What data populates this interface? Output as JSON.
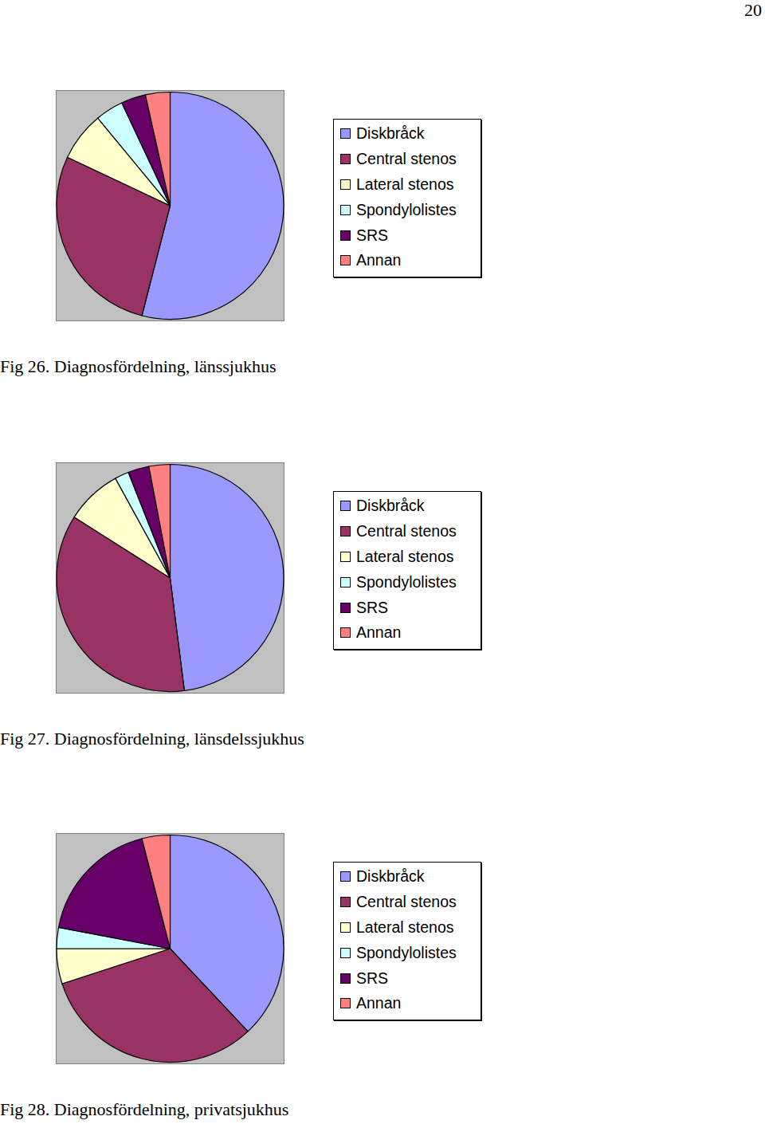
{
  "page_number": 20,
  "chart_data": [
    {
      "type": "pie",
      "title": "Fig 26. Diagnosfördelning, länssjukhus",
      "categories": [
        "Diskbråck",
        "Central stenos",
        "Lateral stenos",
        "Spondylolistes",
        "SRS",
        "Annan"
      ],
      "values": [
        54,
        28,
        7,
        4,
        3.5,
        3.5
      ],
      "colors": [
        "#9999ff",
        "#993366",
        "#ffffcc",
        "#ccffff",
        "#660066",
        "#ff8080"
      ],
      "legend": "right"
    },
    {
      "type": "pie",
      "title": "Fig 27. Diagnosfördelning, länsdelssjukhus",
      "categories": [
        "Diskbråck",
        "Central stenos",
        "Lateral stenos",
        "Spondylolistes",
        "SRS",
        "Annan"
      ],
      "values": [
        48,
        36,
        8,
        2,
        3,
        3
      ],
      "colors": [
        "#9999ff",
        "#993366",
        "#ffffcc",
        "#ccffff",
        "#660066",
        "#ff8080"
      ],
      "legend": "right"
    },
    {
      "type": "pie",
      "title": "Fig 28. Diagnosfördelning, privatsjukhus",
      "categories": [
        "Diskbråck",
        "Central stenos",
        "Lateral stenos",
        "Spondylolistes",
        "SRS",
        "Annan"
      ],
      "values": [
        38,
        32,
        5,
        3,
        18,
        4
      ],
      "colors": [
        "#9999ff",
        "#993366",
        "#ffffcc",
        "#ccffff",
        "#660066",
        "#ff8080"
      ],
      "legend": "right"
    }
  ]
}
